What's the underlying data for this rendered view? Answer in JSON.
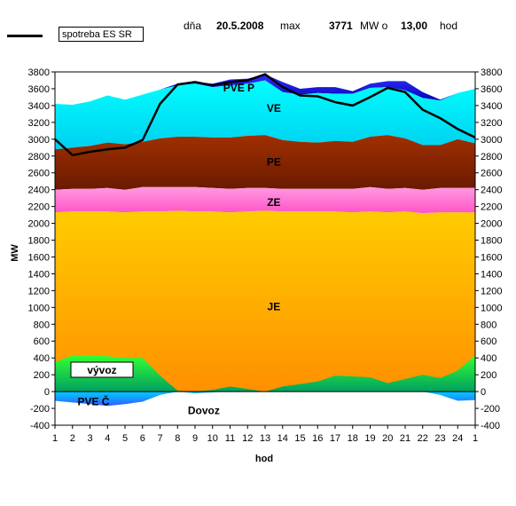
{
  "header": {
    "legend": "spotreba ES SR",
    "day_label": "dňa",
    "date": "20.5.2008",
    "max_label": "max",
    "max_value": "3771",
    "unit_at": "MW o",
    "max_hour": "13,00",
    "hour_label": "hod"
  },
  "chart_data": {
    "type": "area",
    "ylabel": "MW",
    "xlabel": "hod",
    "ylim": [
      -400,
      3800
    ],
    "ytick_step": 200,
    "x": [
      1,
      2,
      3,
      4,
      5,
      6,
      7,
      8,
      9,
      10,
      11,
      12,
      13,
      14,
      15,
      16,
      17,
      18,
      19,
      20,
      21,
      22,
      23,
      24,
      25
    ],
    "xtick_labels": [
      "1",
      "2",
      "3",
      "4",
      "5",
      "6",
      "7",
      "8",
      "9",
      "10",
      "11",
      "12",
      "13",
      "14",
      "15",
      "16",
      "17",
      "18",
      "19",
      "20",
      "21",
      "22",
      "23",
      "24",
      "1"
    ],
    "layers": [
      {
        "label": "PVE Č",
        "color": "#1e90ff",
        "values": [
          -110,
          -130,
          -150,
          -170,
          -150,
          -120,
          -40,
          0,
          -20,
          -10,
          0,
          0,
          0,
          0,
          0,
          0,
          0,
          0,
          0,
          0,
          0,
          0,
          -40,
          -110,
          -100
        ]
      },
      {
        "label": "vývoz",
        "color": "#22dd22",
        "values": [
          350,
          430,
          430,
          420,
          400,
          400,
          190,
          10,
          0,
          20,
          60,
          30,
          0,
          60,
          90,
          120,
          190,
          180,
          170,
          100,
          150,
          200,
          160,
          250,
          430
        ]
      },
      {
        "label": "JE",
        "color": "#ffb000",
        "values": [
          2130,
          2140,
          2140,
          2140,
          2130,
          2140,
          2140,
          2150,
          2140,
          2140,
          2130,
          2140,
          2150,
          2140,
          2140,
          2140,
          2140,
          2130,
          2140,
          2130,
          2140,
          2120,
          2130,
          2130,
          2130
        ]
      },
      {
        "label": "ZE",
        "color": "#ff80d0",
        "values": [
          2400,
          2410,
          2410,
          2420,
          2400,
          2430,
          2430,
          2430,
          2430,
          2420,
          2410,
          2420,
          2420,
          2410,
          2410,
          2410,
          2410,
          2410,
          2430,
          2410,
          2420,
          2400,
          2420,
          2420,
          2420
        ]
      },
      {
        "label": "PE",
        "color": "#8b2500",
        "values": [
          2880,
          2900,
          2920,
          2960,
          2940,
          2970,
          3010,
          3030,
          3030,
          3020,
          3020,
          3040,
          3050,
          2990,
          2970,
          2960,
          2980,
          2970,
          3030,
          3050,
          3010,
          2930,
          2930,
          3000,
          2950
        ]
      },
      {
        "label": "VE",
        "color": "#00eeff",
        "values": [
          3420,
          3410,
          3450,
          3520,
          3470,
          3530,
          3590,
          3640,
          3660,
          3620,
          3640,
          3660,
          3700,
          3560,
          3530,
          3550,
          3540,
          3540,
          3610,
          3620,
          3580,
          3490,
          3460,
          3550,
          3600
        ]
      },
      {
        "label": "PVE P",
        "color": "#0000cc",
        "values": [
          3420,
          3410,
          3450,
          3520,
          3470,
          3530,
          3590,
          3660,
          3680,
          3660,
          3710,
          3720,
          3770,
          3680,
          3600,
          3620,
          3620,
          3570,
          3660,
          3690,
          3690,
          3560,
          3470,
          3550,
          3600
        ]
      }
    ],
    "labels_extra": {
      "dovoz": "Dovoz"
    },
    "consumption": {
      "name": "spotreba ES SR",
      "color": "#000000",
      "values": [
        3000,
        2810,
        2850,
        2880,
        2900,
        2990,
        3420,
        3650,
        3680,
        3640,
        3680,
        3700,
        3771,
        3620,
        3520,
        3510,
        3440,
        3400,
        3500,
        3610,
        3560,
        3350,
        3250,
        3120,
        3020
      ]
    }
  }
}
